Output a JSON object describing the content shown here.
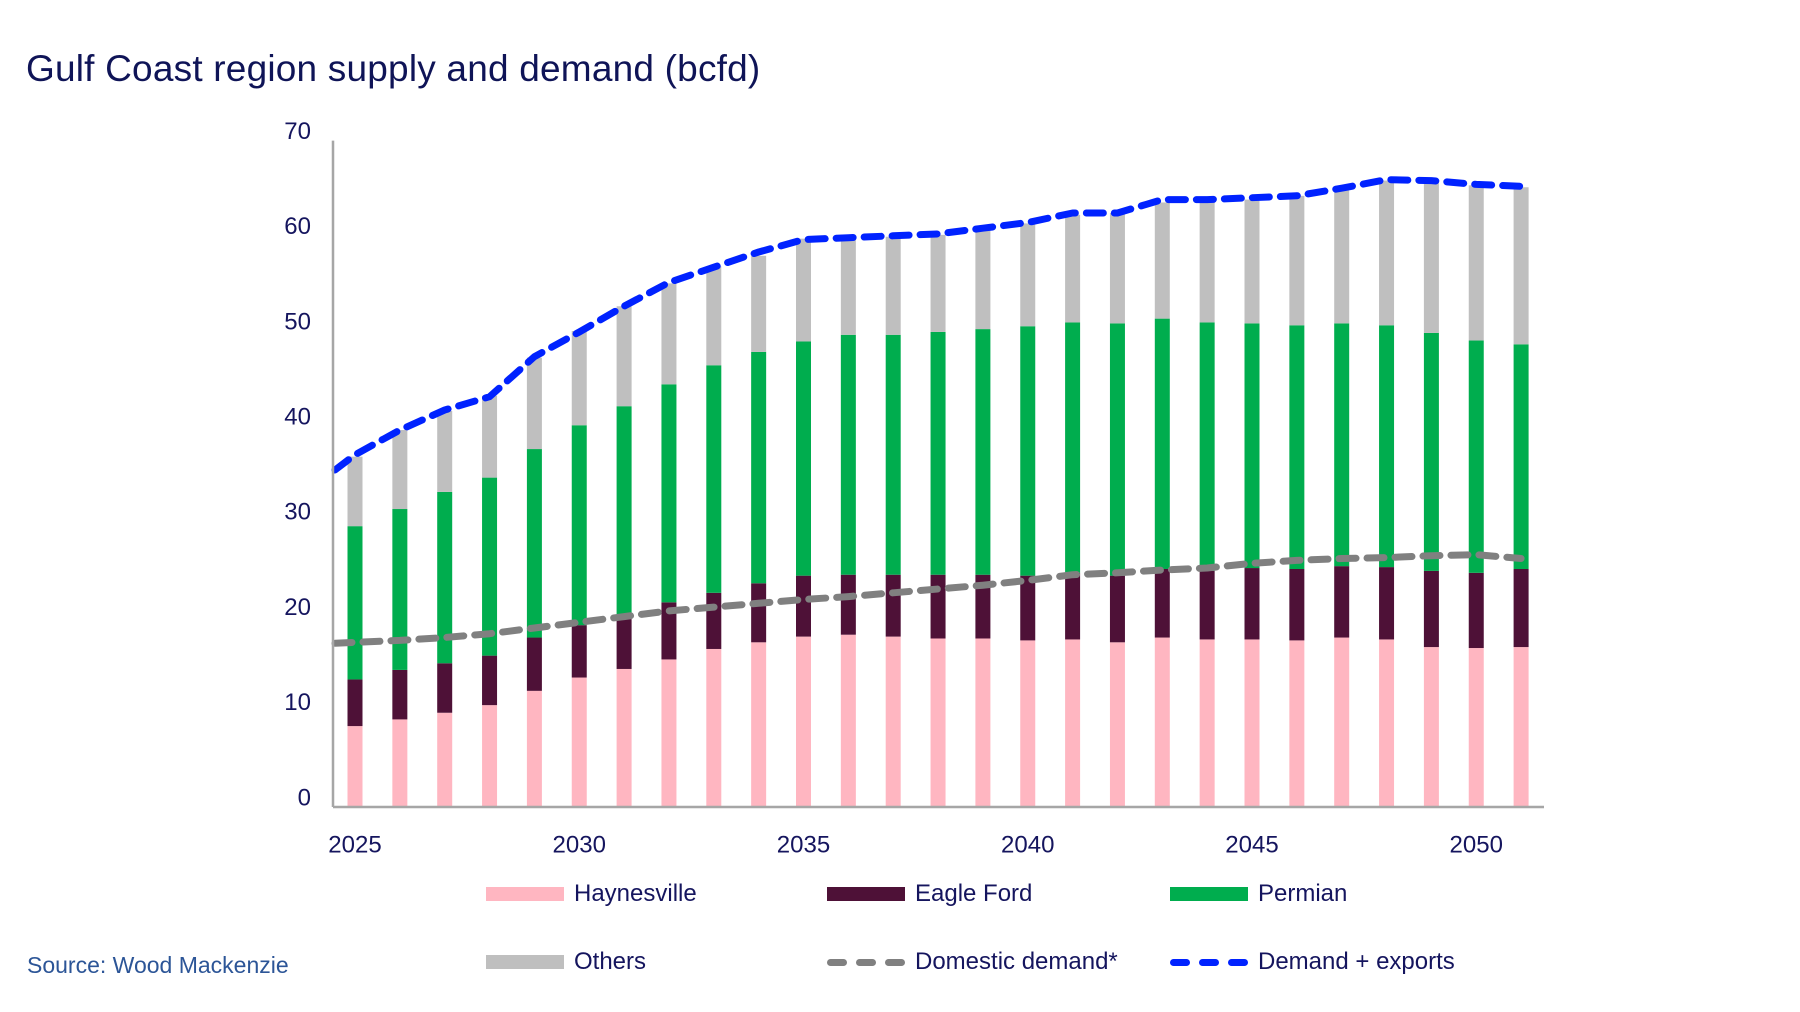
{
  "title": "Gulf Coast region supply and demand (bcfd)",
  "source": "Source: Wood Mackenzie",
  "colors": {
    "haynesville": "#ffb6c1",
    "eagle_ford": "#4e1137",
    "permian": "#00ad4e",
    "others": "#bfbfbf",
    "domestic_demand": "#808080",
    "demand_exports": "#0022ff",
    "text": "#15155e",
    "axis": "#a6a6a6"
  },
  "legend": [
    {
      "label": "Haynesville",
      "kind": "bar",
      "color": "#ffb6c1"
    },
    {
      "label": "Eagle Ford",
      "kind": "bar",
      "color": "#4e1137"
    },
    {
      "label": "Permian",
      "kind": "bar",
      "color": "#00ad4e"
    },
    {
      "label": "Others",
      "kind": "bar",
      "color": "#bfbfbf"
    },
    {
      "label": "Domestic demand*",
      "kind": "dashed-line",
      "color": "#808080"
    },
    {
      "label": "Demand + exports",
      "kind": "dashed-line",
      "color": "#0022ff"
    }
  ],
  "chart_data": {
    "type": "bar",
    "stacked": true,
    "title": "Gulf Coast region supply and demand (bcfd)",
    "xlabel": "",
    "ylabel": "",
    "ylim": [
      0,
      70
    ],
    "yticks": [
      0,
      10,
      20,
      30,
      40,
      50,
      60,
      70
    ],
    "xtick_labels": [
      "2025",
      "2030",
      "2035",
      "2040",
      "2045",
      "2050"
    ],
    "grid": false,
    "legend_position": "bottom",
    "categories": [
      2025,
      2026,
      2027,
      2028,
      2029,
      2030,
      2031,
      2032,
      2033,
      2034,
      2035,
      2036,
      2037,
      2038,
      2039,
      2040,
      2041,
      2042,
      2043,
      2044,
      2045,
      2046,
      2047,
      2048,
      2049,
      2050,
      2051
    ],
    "series": [
      {
        "name": "Haynesville",
        "type": "bar",
        "values": [
          8.5,
          9.2,
          9.9,
          10.7,
          12.2,
          13.6,
          14.5,
          15.5,
          16.6,
          17.3,
          17.9,
          18.1,
          17.9,
          17.7,
          17.7,
          17.5,
          17.6,
          17.3,
          17.8,
          17.6,
          17.6,
          17.5,
          17.8,
          17.6,
          16.8,
          16.7,
          16.8
        ]
      },
      {
        "name": "Eagle Ford",
        "type": "bar",
        "values": [
          4.9,
          5.2,
          5.2,
          5.2,
          5.6,
          5.5,
          5.6,
          6.0,
          5.9,
          6.2,
          6.4,
          6.3,
          6.5,
          6.7,
          6.7,
          6.8,
          7.0,
          7.0,
          7.2,
          7.2,
          7.5,
          7.5,
          7.5,
          7.6,
          8.0,
          7.9,
          8.2
        ]
      },
      {
        "name": "Permian",
        "type": "bar",
        "values": [
          16.1,
          16.9,
          18.0,
          18.7,
          19.8,
          21.0,
          22.0,
          22.9,
          23.9,
          24.3,
          24.6,
          25.2,
          25.2,
          25.5,
          25.8,
          26.2,
          26.3,
          26.5,
          26.3,
          26.1,
          25.7,
          25.6,
          25.5,
          25.4,
          25.0,
          24.4,
          23.6
        ]
      },
      {
        "name": "Others",
        "type": "bar",
        "values": [
          7.3,
          8.3,
          8.5,
          8.6,
          9.6,
          9.9,
          10.5,
          10.6,
          10.4,
          10.1,
          10.8,
          10.2,
          10.3,
          10.2,
          10.4,
          10.8,
          11.3,
          11.6,
          12.2,
          12.7,
          13.0,
          13.6,
          14.2,
          15.2,
          15.9,
          16.3,
          16.5
        ]
      },
      {
        "name": "Domestic demand*",
        "type": "line",
        "dashed": true,
        "start_value": 17.2,
        "values": [
          17.3,
          17.5,
          17.8,
          18.2,
          18.8,
          19.4,
          20.0,
          20.6,
          21.0,
          21.4,
          21.8,
          22.1,
          22.5,
          22.9,
          23.3,
          23.8,
          24.4,
          24.6,
          24.9,
          25.1,
          25.6,
          25.9,
          26.1,
          26.2,
          26.4,
          26.5,
          26.1
        ]
      },
      {
        "name": "Demand + exports",
        "type": "line",
        "dashed": true,
        "start_value": 35.4,
        "values": [
          37.0,
          39.6,
          41.7,
          43.1,
          47.3,
          49.9,
          52.6,
          55.1,
          56.7,
          58.3,
          59.6,
          59.8,
          60.0,
          60.2,
          60.8,
          61.4,
          62.4,
          62.4,
          63.8,
          63.8,
          64.0,
          64.2,
          65.0,
          65.9,
          65.8,
          65.4,
          65.2
        ]
      }
    ]
  }
}
